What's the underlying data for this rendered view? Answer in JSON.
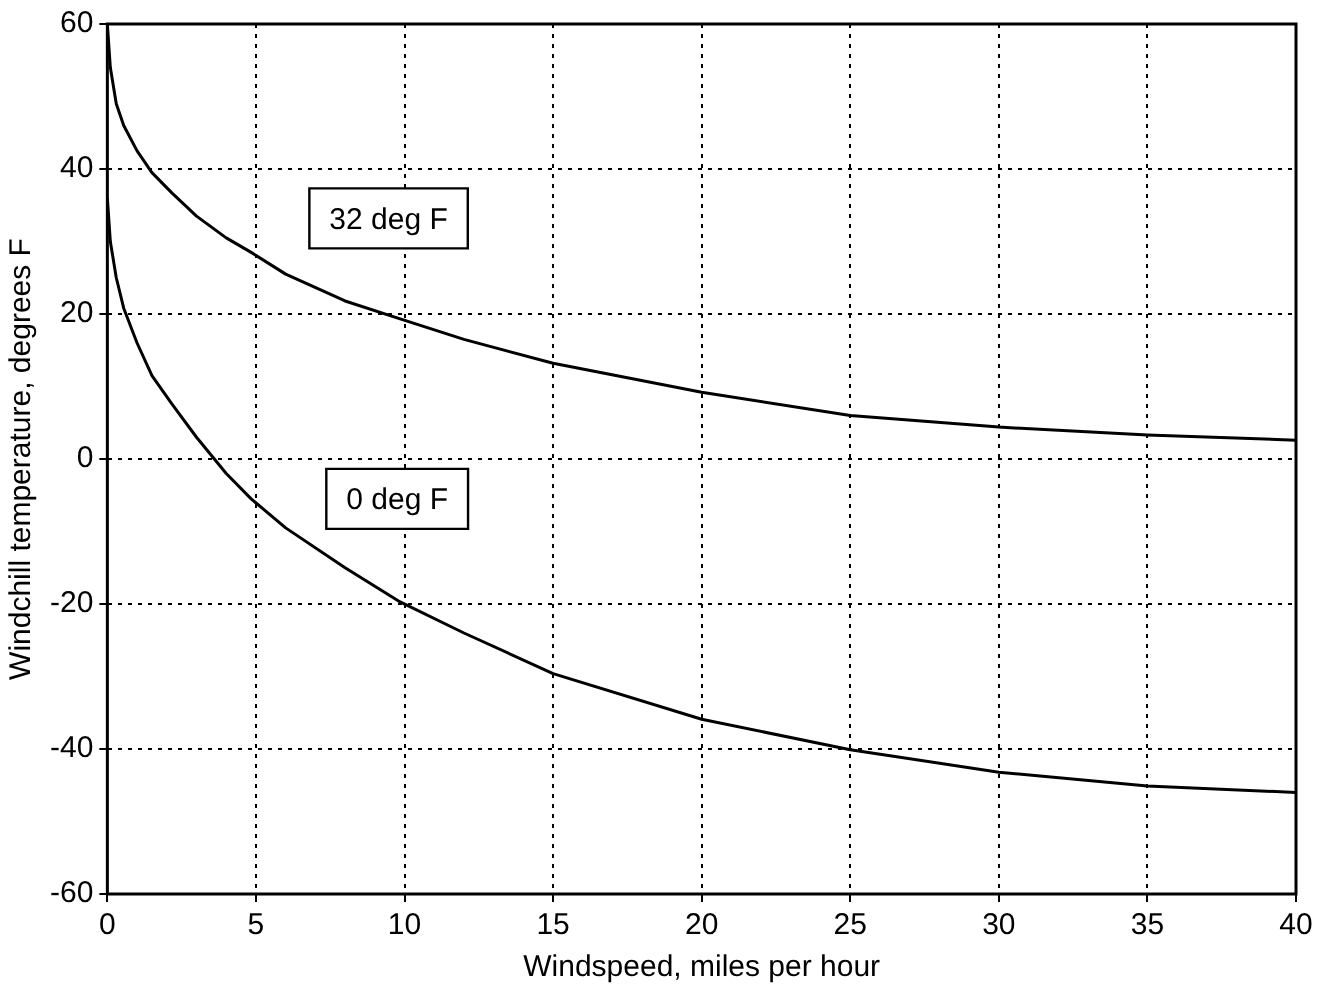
{
  "chart_data": {
    "type": "line",
    "xlabel": "Windspeed, miles per hour",
    "ylabel": "Windchill temperature, degrees F",
    "xlim": [
      0,
      40
    ],
    "xticks": [
      0,
      5,
      10,
      15,
      20,
      25,
      30,
      35,
      40
    ],
    "ylim": [
      -60,
      60
    ],
    "yticks": [
      -60,
      -40,
      -20,
      0,
      20,
      40,
      60
    ],
    "grid": true,
    "legend": false,
    "marker": "none",
    "line_style": "solid",
    "series": [
      {
        "name": "32 deg F",
        "color": "#000000",
        "x": [
          0,
          0.1,
          0.3,
          0.55,
          1,
          1.5,
          2.17,
          3,
          4,
          4.84,
          6,
          8,
          9.8,
          12,
          15,
          20,
          25,
          30,
          35,
          40
        ],
        "values": [
          60,
          54,
          49,
          46,
          42.5,
          39.5,
          36.7,
          33.5,
          30.5,
          28.5,
          25.5,
          21.8,
          19.4,
          16.5,
          13.2,
          9.2,
          6,
          4.4,
          3.3,
          2.6
        ]
      },
      {
        "name": "0 deg F",
        "color": "#000000",
        "x": [
          0,
          0.1,
          0.3,
          0.55,
          1,
          1.5,
          2.17,
          3,
          4,
          4.84,
          6,
          8,
          9.8,
          12,
          15,
          20,
          25,
          30,
          35,
          40
        ],
        "values": [
          36,
          30,
          25,
          20.8,
          16,
          11.5,
          7.6,
          3,
          -2,
          -5.5,
          -9.5,
          -15,
          -19.6,
          -24,
          -29.6,
          -35.9,
          -40.1,
          -43.2,
          -45.1,
          -46
        ]
      }
    ]
  }
}
